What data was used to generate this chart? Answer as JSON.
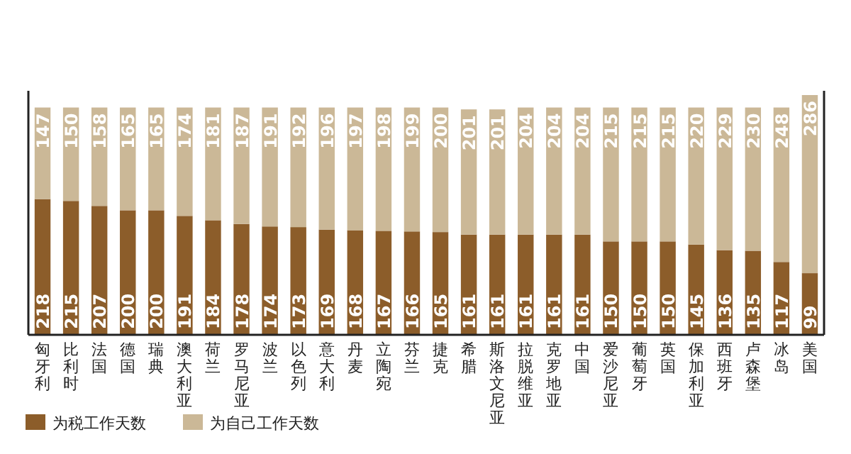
{
  "chart_data": {
    "type": "bar",
    "stacked": true,
    "data_labels": true,
    "legend": "bottom left",
    "categories": [
      "匈牙利",
      "比利时",
      "法国",
      "德国",
      "瑞典",
      "澳大利亚",
      "荷兰",
      "罗马尼亚",
      "波兰",
      "以色列",
      "意大利",
      "丹麦",
      "立陶宛",
      "芬兰",
      "捷克",
      "希腊",
      "斯洛文尼亚",
      "拉脱维亚",
      "克罗地亚",
      "中国",
      "爱沙尼亚",
      "葡萄牙",
      "英国",
      "保加利亚",
      "西班牙",
      "卢森堡",
      "冰岛",
      "美国"
    ],
    "series": [
      {
        "name": "为税工作天数",
        "color": "#8c5d2a",
        "values": [
          218,
          215,
          207,
          200,
          200,
          191,
          184,
          178,
          174,
          173,
          169,
          168,
          167,
          166,
          165,
          161,
          161,
          161,
          161,
          161,
          150,
          150,
          150,
          145,
          136,
          135,
          117,
          99
        ]
      },
      {
        "name": "为自己工作天数",
        "color": "#cbb897",
        "values": [
          147,
          150,
          158,
          165,
          165,
          174,
          181,
          187,
          191,
          192,
          196,
          197,
          198,
          199,
          200,
          201,
          201,
          204,
          204,
          204,
          215,
          215,
          215,
          220,
          229,
          230,
          248,
          286
        ]
      }
    ]
  }
}
